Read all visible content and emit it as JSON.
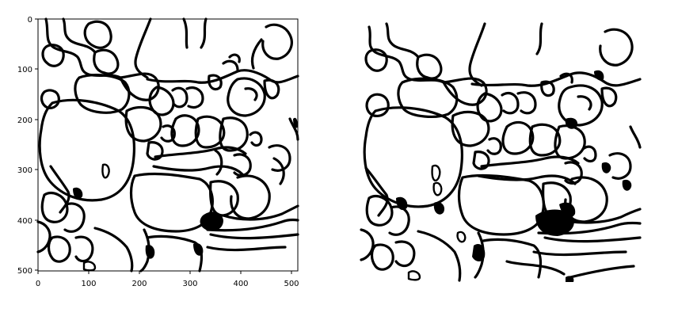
{
  "figure": {
    "panels": [
      {
        "name": "left-segmentation",
        "axes_visible": true,
        "xticks": [
          "0",
          "100",
          "200",
          "300",
          "400",
          "500"
        ],
        "yticks": [
          "0",
          "100",
          "200",
          "300",
          "400",
          "500"
        ],
        "xlim": [
          0,
          512
        ],
        "ylim": [
          512,
          0
        ]
      },
      {
        "name": "right-segmentation",
        "axes_visible": false
      }
    ],
    "colors": {
      "background": "#ffffff",
      "foreground": "#000000"
    }
  }
}
